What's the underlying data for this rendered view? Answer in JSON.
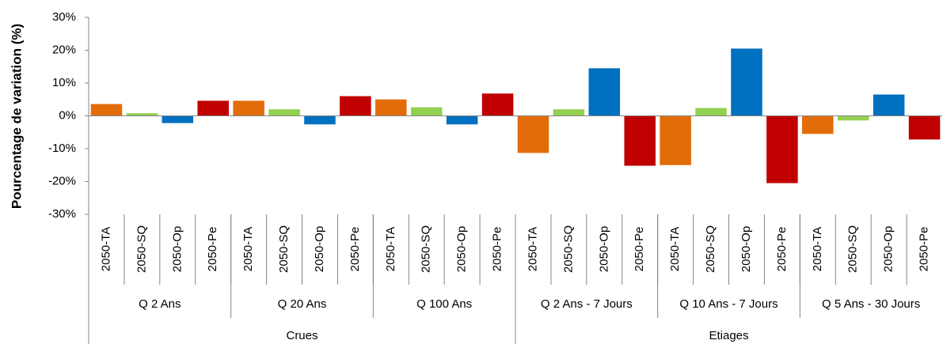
{
  "chart_data": {
    "type": "bar",
    "y_label": "Pourcentage de variation (%)",
    "categories": [
      "2050-TA",
      "2050-SQ",
      "2050-Op",
      "2050-Pe",
      "2050-TA",
      "2050-SQ",
      "2050-Op",
      "2050-Pe",
      "2050-TA",
      "2050-SQ",
      "2050-Op",
      "2050-Pe",
      "2050-TA",
      "2050-SQ",
      "2050-Op",
      "2050-Pe",
      "2050-TA",
      "2050-SQ",
      "2050-Op",
      "2050-Pe",
      "2050-TA",
      "2050-SQ",
      "2050-Op",
      "2050-Pe"
    ],
    "values": [
      3.6,
      0.8,
      -2.2,
      4.6,
      4.6,
      2,
      -2.6,
      6,
      5,
      2.6,
      -2.6,
      6.8,
      -11.3,
      2,
      14.5,
      -15.2,
      -15,
      2.4,
      20.5,
      -20.5,
      -5.5,
      -1.4,
      6.5,
      -7.2
    ],
    "colors": [
      "#e36c0a",
      "#92d050",
      "#0070c0",
      "#c00000",
      "#e36c0a",
      "#92d050",
      "#0070c0",
      "#c00000",
      "#e36c0a",
      "#92d050",
      "#0070c0",
      "#c00000",
      "#e36c0a",
      "#92d050",
      "#0070c0",
      "#c00000",
      "#e36c0a",
      "#92d050",
      "#0070c0",
      "#c00000",
      "#e36c0a",
      "#92d050",
      "#0070c0",
      "#c00000"
    ],
    "groups": [
      "Q 2 Ans",
      "Q 20 Ans",
      "Q 100 Ans",
      "Q 2 Ans - 7 Jours",
      "Q 10 Ans - 7 Jours",
      "Q 5 Ans - 30 Jours"
    ],
    "supergroups": [
      "Crues",
      "Etiages"
    ],
    "ylim": [
      -30,
      30
    ],
    "yticks": [
      {
        "value": -30,
        "label": "-30%"
      },
      {
        "value": -20,
        "label": "-20%"
      },
      {
        "value": -10,
        "label": "-10%"
      },
      {
        "value": 0,
        "label": "0%"
      },
      {
        "value": 10,
        "label": "10%"
      },
      {
        "value": 20,
        "label": "20%"
      },
      {
        "value": 30,
        "label": "30%"
      }
    ]
  }
}
